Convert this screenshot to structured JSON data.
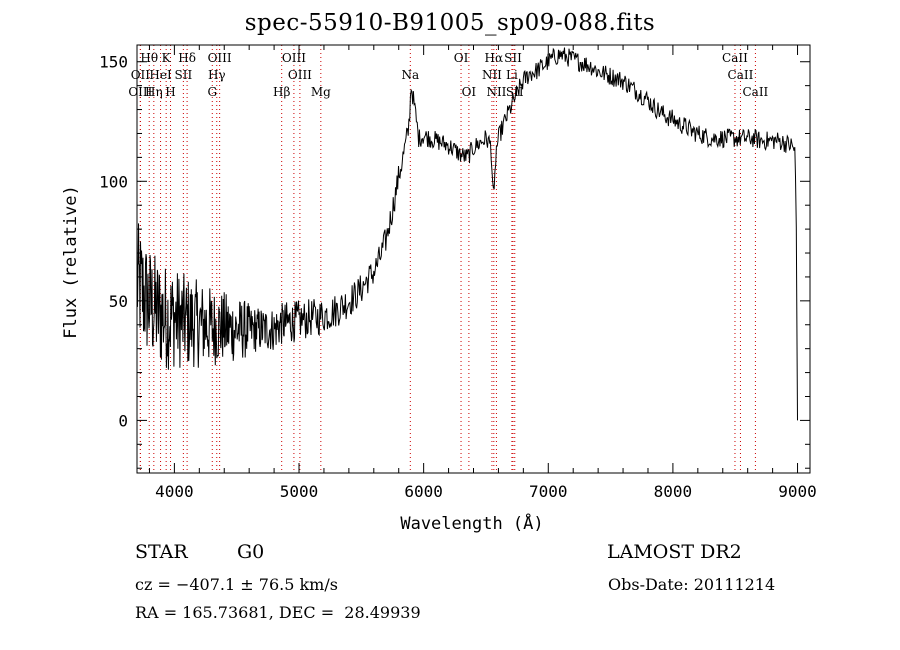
{
  "header": {
    "title": "spec-55910-B91005_sp09-088.fits"
  },
  "info": {
    "object_class": "STAR",
    "subclass": "G0",
    "survey": "LAMOST DR2",
    "cz": "cz = −407.1 ± 76.5 km/s",
    "obs_date": "Obs-Date: 20111214",
    "radec": "RA = 165.73681, DEC =  28.49939"
  },
  "chart_data": {
    "type": "line",
    "title": "spec-55910-B91005_sp09-088.fits",
    "xlabel": "Wavelength (Å)",
    "ylabel": "Flux (relative)",
    "xlim": [
      3700,
      9100
    ],
    "ylim": [
      -22,
      157
    ],
    "xticks": [
      4000,
      5000,
      6000,
      7000,
      8000,
      9000
    ],
    "yticks": [
      0,
      50,
      100,
      150
    ],
    "grid": false,
    "line_color": "#000000",
    "marker_color": "#cc0000",
    "series": [
      {
        "values_x": [
          3700,
          3730,
          3760,
          3800,
          3850,
          3900,
          3950,
          4000,
          4050,
          4100,
          4150,
          4200,
          4250,
          4300,
          4350,
          4400,
          4450,
          4500,
          4550,
          4600,
          4650,
          4700,
          4750,
          4800,
          4850,
          4900,
          4950,
          5000,
          5050,
          5100,
          5150,
          5200,
          5250,
          5300,
          5350,
          5400,
          5450,
          5500,
          5550,
          5600,
          5650,
          5700,
          5750,
          5800,
          5850,
          5880,
          5900,
          5930,
          5960,
          6000,
          6050,
          6100,
          6150,
          6200,
          6250,
          6300,
          6350,
          6400,
          6450,
          6500,
          6540,
          6563,
          6580,
          6600,
          6650,
          6700,
          6750,
          6800,
          6850,
          6900,
          6950,
          7000,
          7050,
          7100,
          7150,
          7200,
          7250,
          7300,
          7350,
          7400,
          7450,
          7500,
          7550,
          7600,
          7650,
          7700,
          7750,
          7800,
          7850,
          7900,
          7950,
          8000,
          8050,
          8100,
          8150,
          8200,
          8250,
          8300,
          8350,
          8400,
          8450,
          8500,
          8550,
          8600,
          8650,
          8700,
          8750,
          8800,
          8850,
          8900,
          8950,
          8980,
          8990,
          9000
        ],
        "values_y": [
          58,
          55,
          52,
          49,
          46,
          44,
          43,
          43,
          42,
          41,
          41,
          40,
          40,
          39,
          39,
          39,
          38,
          38,
          38,
          38,
          38,
          38,
          38,
          38,
          40,
          41,
          41,
          42,
          42,
          43,
          43,
          44,
          45,
          46,
          48,
          50,
          52,
          55,
          59,
          62,
          68,
          76,
          88,
          102,
          114,
          122,
          140,
          130,
          118,
          119,
          118,
          117,
          116,
          115,
          113,
          111,
          110,
          114,
          116,
          118,
          115,
          90,
          112,
          118,
          125,
          131,
          137,
          142,
          145,
          146,
          148,
          150,
          152,
          153,
          152,
          151,
          150,
          149,
          148,
          146,
          145,
          144,
          143,
          142,
          140,
          138,
          136,
          134,
          131,
          129,
          127,
          126,
          124,
          123,
          121,
          120,
          119,
          118,
          118,
          118,
          118,
          118,
          118,
          118,
          118,
          117,
          117,
          117,
          117,
          116,
          115,
          113,
          80,
          0
        ]
      }
    ],
    "lines": [
      {
        "name": "Hθ",
        "wave": 3798,
        "row": 1
      },
      {
        "name": "K",
        "wave": 3934,
        "row": 1
      },
      {
        "name": "Hδ",
        "wave": 4102,
        "row": 1
      },
      {
        "name": "OIII",
        "wave": 4363,
        "row": 1
      },
      {
        "name": "OIII",
        "wave": 4959,
        "row": 1
      },
      {
        "name": "OI",
        "wave": 6300,
        "row": 1
      },
      {
        "name": "Hα",
        "wave": 6563,
        "row": 1
      },
      {
        "name": "SII",
        "wave": 6717,
        "row": 1
      },
      {
        "name": "CaII",
        "wave": 8498,
        "row": 1
      },
      {
        "name": "OII",
        "wave": 3727,
        "row": 2
      },
      {
        "name": "HeI",
        "wave": 3889,
        "row": 2
      },
      {
        "name": "SII",
        "wave": 4072,
        "row": 2
      },
      {
        "name": "Hγ",
        "wave": 4340,
        "row": 2
      },
      {
        "name": "OIII",
        "wave": 5007,
        "row": 2
      },
      {
        "name": "Na",
        "wave": 5893,
        "row": 2
      },
      {
        "name": "NII",
        "wave": 6548,
        "row": 2
      },
      {
        "name": "Li",
        "wave": 6708,
        "row": 2
      },
      {
        "name": "CaII",
        "wave": 8542,
        "row": 2
      },
      {
        "name": "OIII",
        "wave": 3727,
        "row": 3
      },
      {
        "name": "Hη",
        "wave": 3835,
        "row": 3
      },
      {
        "name": "H",
        "wave": 3969,
        "row": 3
      },
      {
        "name": "G",
        "wave": 4304,
        "row": 3
      },
      {
        "name": "Hβ",
        "wave": 4861,
        "row": 3
      },
      {
        "name": "Mg",
        "wave": 5175,
        "row": 3
      },
      {
        "name": "OI",
        "wave": 6363,
        "row": 3
      },
      {
        "name": "NII",
        "wave": 6584,
        "row": 3
      },
      {
        "name": "SII",
        "wave": 6731,
        "row": 3
      },
      {
        "name": "CaII",
        "wave": 8662,
        "row": 3
      }
    ]
  }
}
